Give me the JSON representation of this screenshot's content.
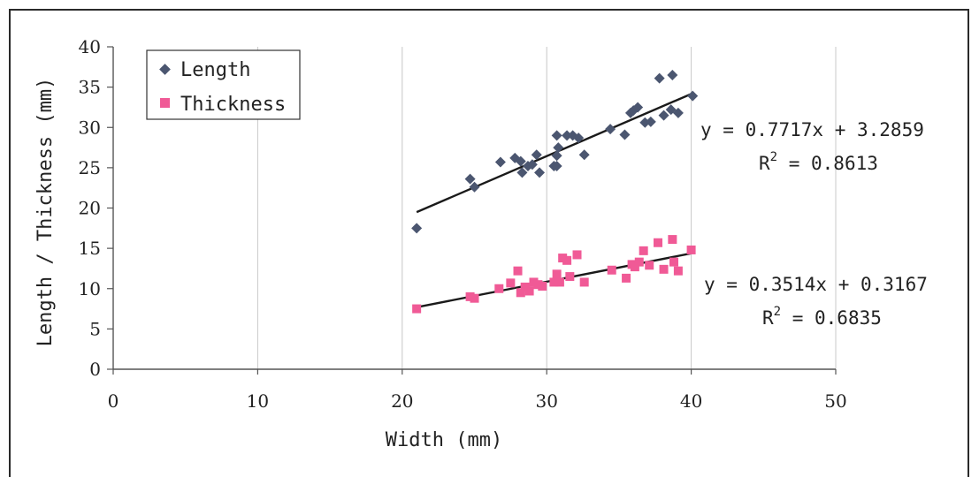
{
  "chart_data": {
    "type": "scatter",
    "xlabel": "Width (mm)",
    "ylabel": "Length / Thickness (mm)",
    "xlim": [
      0,
      50
    ],
    "ylim": [
      0,
      40
    ],
    "xticks": [
      0,
      10,
      20,
      30,
      40,
      50
    ],
    "yticks": [
      0,
      5,
      10,
      15,
      20,
      25,
      30,
      35,
      40
    ],
    "grid": "vertical",
    "legend_position": "top-left",
    "series": [
      {
        "name": "Length",
        "marker": "diamond",
        "color": "#4b5670",
        "points": [
          [
            21.0,
            17.5
          ],
          [
            24.7,
            23.6
          ],
          [
            25.0,
            22.6
          ],
          [
            26.8,
            25.7
          ],
          [
            27.8,
            26.2
          ],
          [
            28.2,
            25.8
          ],
          [
            28.3,
            24.4
          ],
          [
            28.7,
            25.2
          ],
          [
            29.0,
            25.4
          ],
          [
            29.3,
            26.6
          ],
          [
            29.5,
            24.4
          ],
          [
            30.5,
            25.2
          ],
          [
            30.7,
            25.2
          ],
          [
            30.7,
            26.5
          ],
          [
            30.8,
            27.5
          ],
          [
            30.7,
            29.0
          ],
          [
            31.4,
            29.0
          ],
          [
            31.8,
            29.0
          ],
          [
            32.2,
            28.7
          ],
          [
            32.6,
            26.6
          ],
          [
            34.4,
            29.8
          ],
          [
            35.4,
            29.1
          ],
          [
            35.8,
            31.8
          ],
          [
            36.0,
            32.1
          ],
          [
            36.3,
            32.5
          ],
          [
            36.8,
            30.6
          ],
          [
            37.2,
            30.7
          ],
          [
            37.8,
            36.1
          ],
          [
            38.1,
            31.5
          ],
          [
            38.6,
            32.2
          ],
          [
            38.7,
            36.5
          ],
          [
            39.1,
            31.8
          ],
          [
            40.1,
            33.9
          ]
        ],
        "trendline": {
          "slope": 0.7717,
          "intercept": 3.2859,
          "x_range": [
            21,
            40
          ],
          "equation": "y = 0.7717x + 3.2859",
          "r2_label": "R",
          "r2_exp": "2",
          "r2_value": " = 0.8613"
        }
      },
      {
        "name": "Thickness",
        "marker": "square",
        "color": "#f05a96",
        "points": [
          [
            21.0,
            7.5
          ],
          [
            24.7,
            9.0
          ],
          [
            25.0,
            8.8
          ],
          [
            26.7,
            10.0
          ],
          [
            27.5,
            10.7
          ],
          [
            28.0,
            12.2
          ],
          [
            28.2,
            9.5
          ],
          [
            28.5,
            10.2
          ],
          [
            28.8,
            9.7
          ],
          [
            29.1,
            10.8
          ],
          [
            29.4,
            10.5
          ],
          [
            29.7,
            10.3
          ],
          [
            30.5,
            10.8
          ],
          [
            30.7,
            11.8
          ],
          [
            30.9,
            10.8
          ],
          [
            31.1,
            13.8
          ],
          [
            31.4,
            13.5
          ],
          [
            31.6,
            11.5
          ],
          [
            32.1,
            14.2
          ],
          [
            32.6,
            10.8
          ],
          [
            34.5,
            12.3
          ],
          [
            35.5,
            11.3
          ],
          [
            35.9,
            13.0
          ],
          [
            36.1,
            12.7
          ],
          [
            36.4,
            13.3
          ],
          [
            36.7,
            14.7
          ],
          [
            37.1,
            12.9
          ],
          [
            37.7,
            15.7
          ],
          [
            38.1,
            12.4
          ],
          [
            38.7,
            16.1
          ],
          [
            38.8,
            13.3
          ],
          [
            39.1,
            12.2
          ],
          [
            40.0,
            14.8
          ]
        ],
        "trendline": {
          "slope": 0.3514,
          "intercept": 0.3167,
          "x_range": [
            21,
            40
          ],
          "equation": "y = 0.3514x + 0.3167",
          "r2_label": "R",
          "r2_exp": "2",
          "r2_value": " = 0.6835"
        }
      }
    ]
  }
}
